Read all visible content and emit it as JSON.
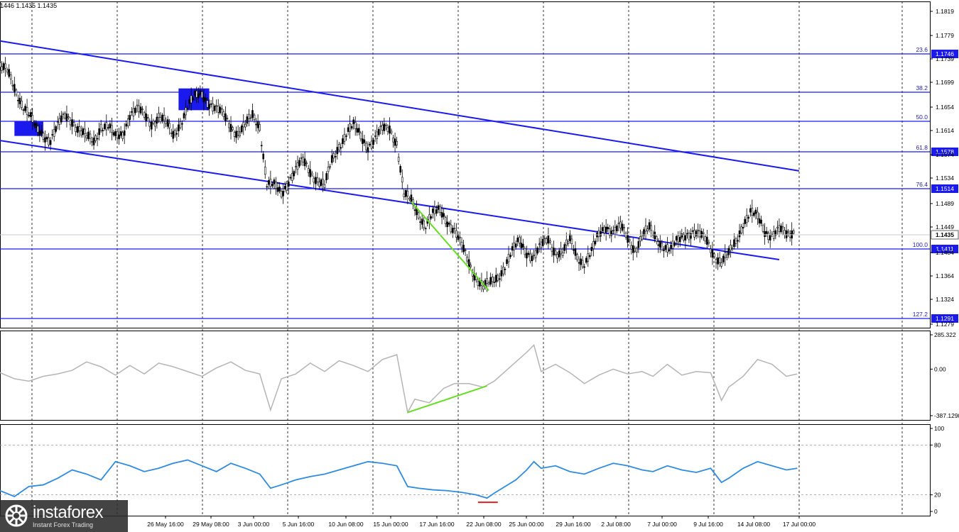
{
  "header": {
    "ohlc_text": "1446 1.1435 1.1435"
  },
  "logo": {
    "name": "instaforex",
    "tagline": "Instant Forex Trading"
  },
  "chart_data": [
    {
      "type": "candlestick",
      "title": "",
      "price_axis_ticks": [
        "1.1819",
        "1.1779",
        "1.1739",
        "1.1699",
        "1.1654",
        "1.1614",
        "1.1574",
        "1.1534",
        "1.1489",
        "1.1449",
        "1.1404",
        "1.1364",
        "1.1324",
        "1.1279"
      ],
      "x_tick_labels": [
        "26 May 16:00",
        "29 May 08:00",
        "3 Jun 00:00",
        "5 Jun 16:00",
        "10 Jun 08:00",
        "15 Jun 00:00",
        "17 Jun 16:00",
        "22 Jun 08:00",
        "25 Jun 00:00",
        "29 Jun 16:00",
        "2 Jul 08:00",
        "7 Jul 00:00",
        "9 Jul 16:00",
        "14 Jul 08:00",
        "17 Jul 00:00"
      ],
      "ylim": [
        1.127,
        1.184
      ],
      "current_price": "1.1435",
      "close_path": [
        [
          0,
          1.1725
        ],
        [
          4,
          1.1715
        ],
        [
          8,
          1.169
        ],
        [
          12,
          1.1665
        ],
        [
          16,
          1.164
        ],
        [
          20,
          1.1615
        ],
        [
          24,
          1.161
        ],
        [
          28,
          1.16
        ],
        [
          32,
          1.162
        ],
        [
          36,
          1.164
        ],
        [
          40,
          1.1635
        ],
        [
          44,
          1.1615
        ],
        [
          48,
          1.16
        ],
        [
          52,
          1.1595
        ],
        [
          56,
          1.1625
        ],
        [
          60,
          1.162
        ],
        [
          64,
          1.16
        ],
        [
          68,
          1.161
        ],
        [
          72,
          1.1645
        ],
        [
          76,
          1.165
        ],
        [
          80,
          1.164
        ],
        [
          84,
          1.163
        ],
        [
          88,
          1.164
        ],
        [
          92,
          1.1625
        ],
        [
          96,
          1.1605
        ],
        [
          100,
          1.163
        ],
        [
          104,
          1.1655
        ],
        [
          108,
          1.167
        ],
        [
          112,
          1.168
        ],
        [
          116,
          1.1665
        ],
        [
          120,
          1.165
        ],
        [
          124,
          1.164
        ],
        [
          128,
          1.1625
        ],
        [
          132,
          1.161
        ],
        [
          136,
          1.162
        ],
        [
          140,
          1.164
        ],
        [
          144,
          1.1625
        ],
        [
          148,
          1.152
        ],
        [
          152,
          1.1515
        ],
        [
          156,
          1.1505
        ],
        [
          160,
          1.153
        ],
        [
          164,
          1.1545
        ],
        [
          168,
          1.156
        ],
        [
          172,
          1.1545
        ],
        [
          176,
          1.153
        ],
        [
          180,
          1.1515
        ],
        [
          184,
          1.156
        ],
        [
          188,
          1.159
        ],
        [
          192,
          1.161
        ],
        [
          196,
          1.162
        ],
        [
          200,
          1.1605
        ],
        [
          204,
          1.159
        ],
        [
          208,
          1.16
        ],
        [
          212,
          1.1615
        ],
        [
          216,
          1.162
        ],
        [
          220,
          1.1595
        ],
        [
          224,
          1.15
        ],
        [
          228,
          1.149
        ],
        [
          232,
          1.147
        ],
        [
          236,
          1.145
        ],
        [
          240,
          1.1465
        ],
        [
          244,
          1.1475
        ],
        [
          248,
          1.146
        ],
        [
          252,
          1.144
        ],
        [
          256,
          1.141
        ],
        [
          260,
          1.1385
        ],
        [
          264,
          1.136
        ],
        [
          268,
          1.134
        ],
        [
          272,
          1.1345
        ],
        [
          276,
          1.136
        ],
        [
          280,
          1.138
        ],
        [
          284,
          1.14
        ],
        [
          288,
          1.142
        ],
        [
          292,
          1.1405
        ],
        [
          296,
          1.1395
        ],
        [
          300,
          1.141
        ],
        [
          304,
          1.1425
        ],
        [
          308,
          1.1405
        ],
        [
          312,
          1.14
        ],
        [
          316,
          1.142
        ],
        [
          320,
          1.1395
        ],
        [
          324,
          1.1385
        ],
        [
          328,
          1.14
        ],
        [
          332,
          1.143
        ],
        [
          336,
          1.145
        ],
        [
          340,
          1.144
        ],
        [
          344,
          1.1445
        ],
        [
          348,
          1.1425
        ],
        [
          352,
          1.141
        ],
        [
          356,
          1.143
        ],
        [
          360,
          1.144
        ],
        [
          364,
          1.1425
        ],
        [
          368,
          1.1415
        ],
        [
          372,
          1.1405
        ],
        [
          376,
          1.142
        ],
        [
          380,
          1.1435
        ],
        [
          384,
          1.144
        ],
        [
          388,
          1.143
        ],
        [
          392,
          1.142
        ],
        [
          396,
          1.14
        ],
        [
          400,
          1.1385
        ],
        [
          404,
          1.1395
        ],
        [
          408,
          1.142
        ],
        [
          412,
          1.1455
        ],
        [
          416,
          1.147
        ],
        [
          420,
          1.146
        ],
        [
          424,
          1.144
        ],
        [
          428,
          1.1435
        ],
        [
          432,
          1.144
        ],
        [
          436,
          1.143
        ],
        [
          440,
          1.144
        ]
      ],
      "fib_levels": [
        {
          "ratio": "23.6",
          "price": "1.1746",
          "tag_shown": true
        },
        {
          "ratio": "38.2",
          "price": "1.1674",
          "tag_shown": false
        },
        {
          "ratio": "50.0",
          "price": "1.1636",
          "tag_shown": false
        },
        {
          "ratio": "61.8",
          "price": "1.1578",
          "tag_shown": true
        },
        {
          "ratio": "76.4",
          "price": "1.1514",
          "tag_shown": true
        },
        {
          "ratio": "100.0",
          "price": "1.1411",
          "tag_shown": true
        },
        {
          "ratio": "127.2",
          "price": "1.1291",
          "tag_shown": true
        }
      ],
      "channel_lines": [
        {
          "from": [
            0,
            1.1771
          ],
          "to": [
            443,
            1.1544
          ]
        },
        {
          "from": [
            0,
            1.1597
          ],
          "to": [
            432,
            1.1389
          ]
        }
      ],
      "divergence_line_price": {
        "from": [
          228,
          1.149
        ],
        "to": [
          271,
          1.1335
        ],
        "color": "#66dd22"
      },
      "highlight_boxes": [
        {
          "x0": 8,
          "x1": 24,
          "y0": 1.1605,
          "y1": 1.163,
          "color": "#1a1aee"
        },
        {
          "x0": 99,
          "x1": 116,
          "y0": 1.165,
          "y1": 1.1688,
          "color": "#1a1aee"
        }
      ],
      "colors": {
        "axis_tag_bg": "#1a1aee",
        "level_line": "#1a1aee",
        "candle": "#000000",
        "divergence": "#66dd22"
      }
    },
    {
      "type": "line",
      "name_hidden": true,
      "scale_labels": [
        "285.322",
        "0.00",
        "-387.1290"
      ],
      "ylim": [
        -387.129,
        285.322
      ],
      "values": [
        [
          0,
          -30
        ],
        [
          8,
          -80
        ],
        [
          16,
          -100
        ],
        [
          24,
          -60
        ],
        [
          32,
          -40
        ],
        [
          40,
          -10
        ],
        [
          48,
          60
        ],
        [
          56,
          20
        ],
        [
          64,
          -50
        ],
        [
          72,
          30
        ],
        [
          80,
          -40
        ],
        [
          88,
          50
        ],
        [
          96,
          20
        ],
        [
          104,
          -20
        ],
        [
          112,
          -60
        ],
        [
          120,
          10
        ],
        [
          128,
          60
        ],
        [
          136,
          -10
        ],
        [
          144,
          -40
        ],
        [
          150,
          -340
        ],
        [
          156,
          -80
        ],
        [
          164,
          -40
        ],
        [
          172,
          50
        ],
        [
          180,
          -20
        ],
        [
          188,
          70
        ],
        [
          196,
          30
        ],
        [
          204,
          -20
        ],
        [
          212,
          80
        ],
        [
          220,
          120
        ],
        [
          226,
          -360
        ],
        [
          230,
          -250
        ],
        [
          238,
          -280
        ],
        [
          246,
          -160
        ],
        [
          252,
          -120
        ],
        [
          260,
          -120
        ],
        [
          268,
          -150
        ],
        [
          274,
          -100
        ],
        [
          280,
          -20
        ],
        [
          286,
          60
        ],
        [
          292,
          140
        ],
        [
          296,
          200
        ],
        [
          300,
          -20
        ],
        [
          308,
          40
        ],
        [
          316,
          -30
        ],
        [
          324,
          -120
        ],
        [
          332,
          -50
        ],
        [
          340,
          0
        ],
        [
          348,
          -40
        ],
        [
          356,
          -20
        ],
        [
          362,
          -60
        ],
        [
          370,
          40
        ],
        [
          378,
          -50
        ],
        [
          386,
          -20
        ],
        [
          394,
          -30
        ],
        [
          400,
          -260
        ],
        [
          404,
          -150
        ],
        [
          412,
          -60
        ],
        [
          420,
          80
        ],
        [
          428,
          40
        ],
        [
          436,
          -60
        ],
        [
          442,
          -40
        ]
      ],
      "divergence_line": {
        "from": [
          226,
          -360
        ],
        "to": [
          270,
          -140
        ],
        "color": "#66dd22"
      },
      "color": "#b5b5b5"
    },
    {
      "type": "line",
      "name_hidden": true,
      "scale_labels": [
        "100",
        "80",
        "20",
        "0"
      ],
      "ylim": [
        0,
        100
      ],
      "values": [
        [
          0,
          25
        ],
        [
          8,
          18
        ],
        [
          16,
          30
        ],
        [
          24,
          32
        ],
        [
          32,
          40
        ],
        [
          40,
          50
        ],
        [
          48,
          45
        ],
        [
          56,
          38
        ],
        [
          64,
          60
        ],
        [
          72,
          55
        ],
        [
          80,
          48
        ],
        [
          88,
          52
        ],
        [
          96,
          58
        ],
        [
          104,
          62
        ],
        [
          112,
          55
        ],
        [
          120,
          48
        ],
        [
          128,
          58
        ],
        [
          136,
          52
        ],
        [
          144,
          45
        ],
        [
          150,
          28
        ],
        [
          156,
          32
        ],
        [
          164,
          38
        ],
        [
          172,
          42
        ],
        [
          180,
          45
        ],
        [
          188,
          50
        ],
        [
          196,
          55
        ],
        [
          204,
          60
        ],
        [
          212,
          58
        ],
        [
          220,
          55
        ],
        [
          226,
          30
        ],
        [
          232,
          28
        ],
        [
          240,
          26
        ],
        [
          248,
          25
        ],
        [
          256,
          23
        ],
        [
          264,
          20
        ],
        [
          270,
          16
        ],
        [
          274,
          22
        ],
        [
          280,
          30
        ],
        [
          286,
          38
        ],
        [
          292,
          50
        ],
        [
          296,
          60
        ],
        [
          300,
          52
        ],
        [
          308,
          55
        ],
        [
          316,
          48
        ],
        [
          324,
          45
        ],
        [
          332,
          52
        ],
        [
          340,
          58
        ],
        [
          348,
          55
        ],
        [
          356,
          50
        ],
        [
          362,
          48
        ],
        [
          370,
          55
        ],
        [
          378,
          50
        ],
        [
          386,
          47
        ],
        [
          394,
          52
        ],
        [
          400,
          35
        ],
        [
          404,
          40
        ],
        [
          412,
          52
        ],
        [
          420,
          60
        ],
        [
          428,
          55
        ],
        [
          436,
          50
        ],
        [
          442,
          52
        ]
      ],
      "oversold_marker": {
        "x0": 265,
        "x1": 276,
        "value": 11,
        "color": "#e02020"
      },
      "color": "#2f8be0",
      "guide_levels": [
        80,
        20
      ]
    }
  ]
}
